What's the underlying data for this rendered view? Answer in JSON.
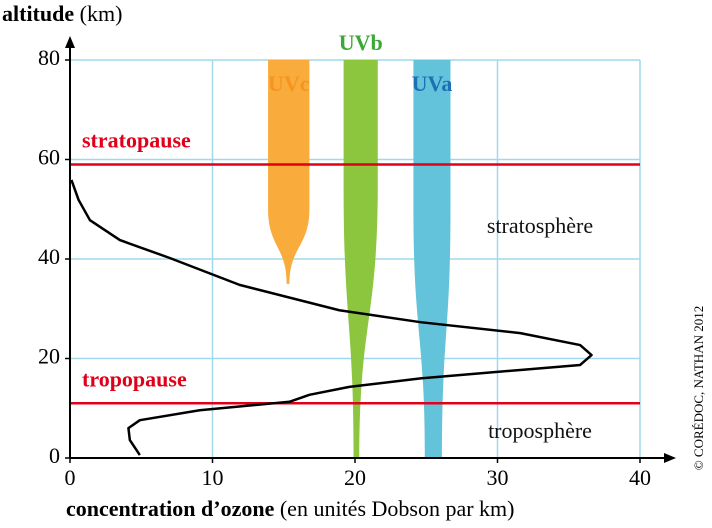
{
  "chart_data": {
    "type": "line",
    "ylabel_parts": [
      "altitude",
      "(km)"
    ],
    "xlabel_parts": [
      "concentration d’ozone",
      "(en unités Dobson par km)"
    ],
    "credit": "© CORÉDOC, NATHAN 2012",
    "xlim": [
      0,
      40
    ],
    "xticks": [
      0,
      10,
      20,
      30,
      40
    ],
    "ylim": [
      0,
      80
    ],
    "yticks": [
      0,
      20,
      40,
      60,
      80
    ],
    "grid": true,
    "grid_color": "#9fd9ee",
    "series": [
      {
        "color": "#000000",
        "x": [
          4.9,
          4.2,
          4.1,
          4.9,
          9.1,
          15.4,
          16.8,
          19.6,
          24.6,
          31.6,
          35.8,
          36.6,
          35.8,
          31.6,
          24.6,
          18.9,
          11.9,
          7.0,
          3.5,
          1.4,
          0.6,
          0.1
        ],
        "y": [
          0.6,
          3.6,
          6,
          7.6,
          9.6,
          11.3,
          12.7,
          14.3,
          16,
          17.7,
          18.7,
          20.7,
          22.7,
          25.1,
          27.3,
          29.7,
          34.8,
          40.2,
          43.8,
          47.8,
          51.9,
          55.9
        ]
      }
    ],
    "bands": [
      {
        "name": "UVc",
        "color": "#f9ab3c",
        "label_color": "#f7941d",
        "x_top": [
          13.9,
          16.8
        ],
        "taper_start": 50,
        "x_bottom": [
          15.2,
          15.4
        ],
        "min_altitude": 35
      },
      {
        "name": "UVb",
        "color": "#8cc63f",
        "label_color": "#3aa935",
        "x_top": [
          19.2,
          21.6
        ],
        "taper_start": 55,
        "x_bottom": [
          19.9,
          20.3
        ],
        "min_altitude": 0
      },
      {
        "name": "UVa",
        "color": "#63c3da",
        "label_color": "#1f6fb5",
        "x_top": [
          24.1,
          26.7
        ],
        "taper_start": 50,
        "x_bottom": [
          24.9,
          26.1
        ],
        "min_altitude": 0
      }
    ],
    "hlines": [
      {
        "name": "stratopause",
        "altitude": 59
      },
      {
        "name": "tropopause",
        "altitude": 11
      }
    ],
    "hline_color": "#e0001a",
    "regions": [
      "stratosphère",
      "troposphère"
    ]
  }
}
